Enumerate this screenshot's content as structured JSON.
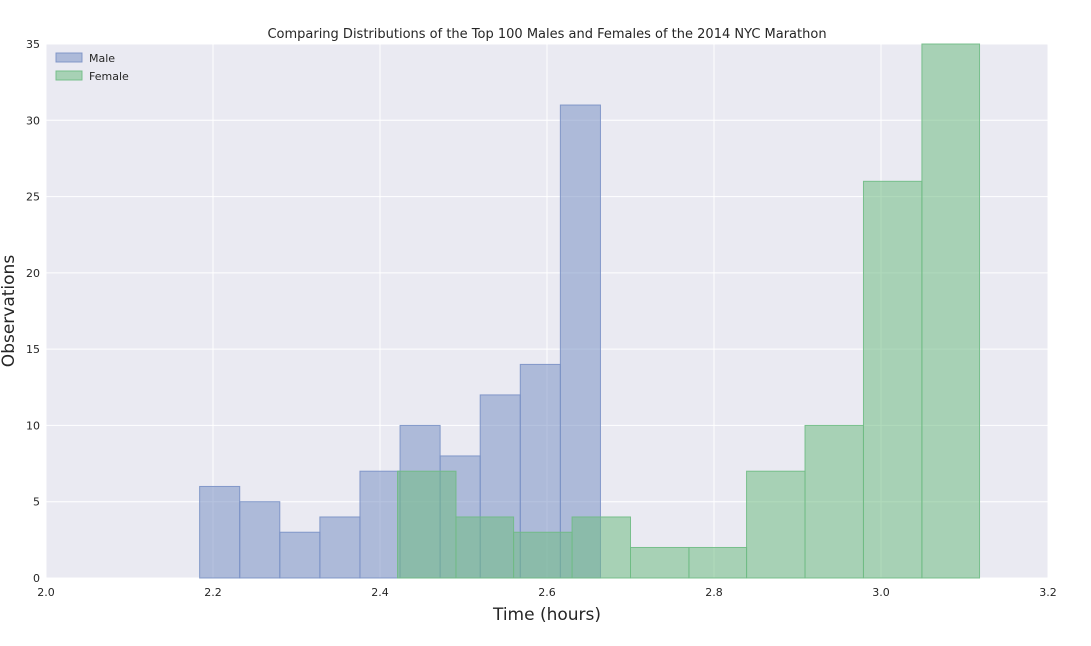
{
  "chart_data": {
    "type": "bar",
    "title": "Comparing Distributions of the Top 100 Males and Females of the 2014 NYC Marathon",
    "xlabel": "Time (hours)",
    "ylabel": "Observations",
    "xlim": [
      2.0,
      3.2
    ],
    "ylim": [
      0,
      35
    ],
    "xticks": [
      "2.0",
      "2.2",
      "2.4",
      "2.6",
      "2.8",
      "3.0",
      "3.2"
    ],
    "yticks": [
      "0",
      "5",
      "10",
      "15",
      "20",
      "25",
      "30",
      "35"
    ],
    "grid": true,
    "legend_position": "top-left",
    "series": [
      {
        "name": "Male",
        "color": "#7a91c5",
        "bins": [
          {
            "x0": 2.184,
            "x1": 2.232,
            "count": 6
          },
          {
            "x0": 2.232,
            "x1": 2.28,
            "count": 5
          },
          {
            "x0": 2.28,
            "x1": 2.328,
            "count": 3
          },
          {
            "x0": 2.328,
            "x1": 2.376,
            "count": 4
          },
          {
            "x0": 2.376,
            "x1": 2.424,
            "count": 7
          },
          {
            "x0": 2.424,
            "x1": 2.472,
            "count": 10
          },
          {
            "x0": 2.472,
            "x1": 2.52,
            "count": 8
          },
          {
            "x0": 2.52,
            "x1": 2.568,
            "count": 12
          },
          {
            "x0": 2.568,
            "x1": 2.616,
            "count": 14
          },
          {
            "x0": 2.616,
            "x1": 2.664,
            "count": 31
          }
        ]
      },
      {
        "name": "Female",
        "color": "#6fbb84",
        "bins": [
          {
            "x0": 2.421,
            "x1": 2.491,
            "count": 7
          },
          {
            "x0": 2.491,
            "x1": 2.56,
            "count": 4
          },
          {
            "x0": 2.56,
            "x1": 2.63,
            "count": 3
          },
          {
            "x0": 2.63,
            "x1": 2.7,
            "count": 4
          },
          {
            "x0": 2.7,
            "x1": 2.77,
            "count": 2
          },
          {
            "x0": 2.77,
            "x1": 2.839,
            "count": 2
          },
          {
            "x0": 2.839,
            "x1": 2.909,
            "count": 7
          },
          {
            "x0": 2.909,
            "x1": 2.979,
            "count": 10
          },
          {
            "x0": 2.979,
            "x1": 3.049,
            "count": 26
          },
          {
            "x0": 3.049,
            "x1": 3.118,
            "count": 35
          }
        ]
      }
    ]
  }
}
